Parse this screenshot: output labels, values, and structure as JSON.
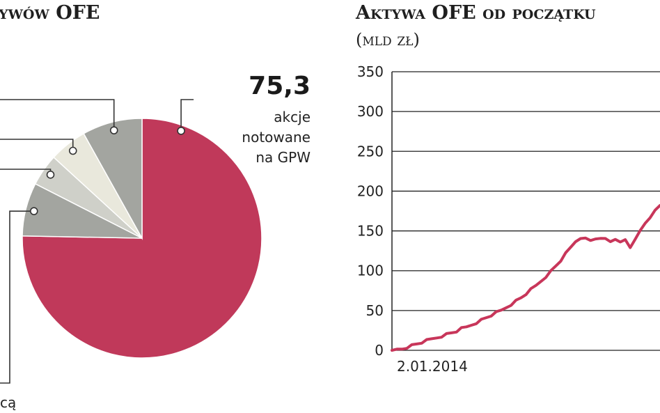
{
  "left_panel": {
    "title": "ywów OFE"
  },
  "right_panel": {
    "title": "Aktywa OFE od początku",
    "subtitle": "(mld zł)"
  },
  "chart_data": [
    {
      "type": "pie",
      "title": "ywów OFE",
      "slices": [
        {
          "label": "akcje notowane na GPW",
          "label_lines": [
            "akcje",
            "notowane",
            "na GPW"
          ],
          "value": 75.3,
          "value_text": "75,3",
          "color": "#c0395a"
        },
        {
          "label": "ą",
          "label_lines": [
            "cą"
          ],
          "value": 7.2,
          "value_text": "",
          "color": "#a3a5a0"
        },
        {
          "label": "",
          "label_lines": [],
          "value": 4.3,
          "value_text": "",
          "color": "#cfd0c9"
        },
        {
          "label": "",
          "label_lines": [],
          "value": 5.1,
          "value_text": "",
          "color": "#e9e8dc"
        },
        {
          "label": "",
          "label_lines": [],
          "value": 8.1,
          "value_text": "",
          "color": "#a3a5a0"
        }
      ]
    },
    {
      "type": "line",
      "title": "Aktywa OFE od początku",
      "ylabel": "(mld zł)",
      "ylim": [
        0,
        350
      ],
      "yticks": [
        0,
        50,
        100,
        150,
        200,
        250,
        300,
        350
      ],
      "ytick_labels": [
        "0",
        "50",
        "100",
        "150",
        "200",
        "250",
        "300",
        "350"
      ],
      "x_start_label": "2.01.2014",
      "grid": "horizontal",
      "series": [
        {
          "color": "#c8365a",
          "values": [
            0,
            1,
            2,
            4,
            6,
            8,
            10,
            12,
            14,
            16,
            18,
            20,
            22,
            24,
            27,
            29,
            32,
            35,
            38,
            41,
            44,
            47,
            50,
            54,
            58,
            62,
            66,
            71,
            76,
            81,
            87,
            93,
            99,
            106,
            113,
            121,
            129,
            137,
            142,
            140,
            138,
            141,
            139,
            140,
            137,
            141,
            135,
            139,
            130,
            138,
            150,
            160,
            168,
            175,
            182
          ]
        }
      ]
    }
  ]
}
